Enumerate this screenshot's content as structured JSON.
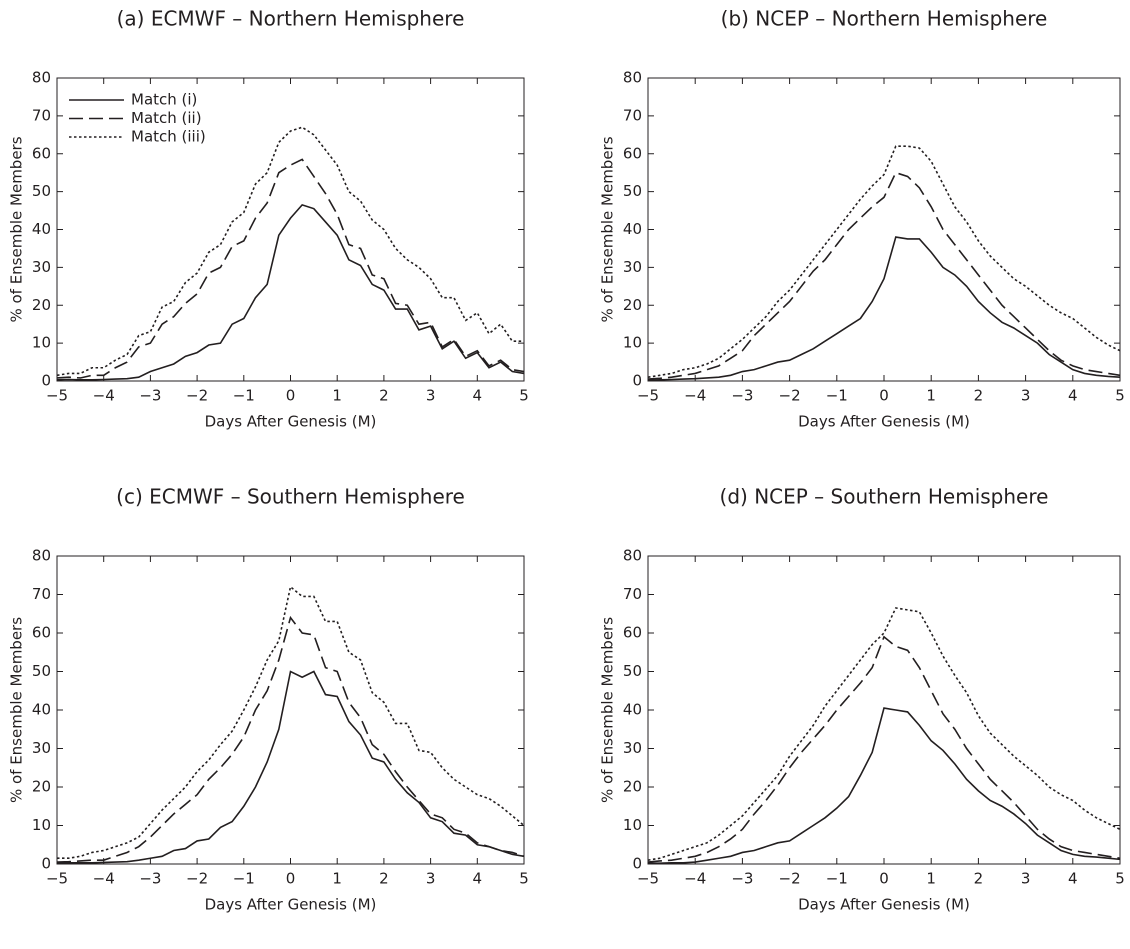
{
  "chart_data": [
    {
      "type": "line",
      "title": "(a) ECMWF – Northern Hemisphere",
      "xlabel": "Days After Genesis (M)",
      "ylabel": "% of Ensemble Members",
      "x": [
        -5,
        -4.75,
        -4.5,
        -4.25,
        -4,
        -3.75,
        -3.5,
        -3.25,
        -3,
        -2.75,
        -2.5,
        -2.25,
        -2,
        -1.75,
        -1.5,
        -1.25,
        -1,
        -0.75,
        -0.5,
        -0.25,
        0,
        0.25,
        0.5,
        0.75,
        1,
        1.25,
        1.5,
        1.75,
        2,
        2.25,
        2.5,
        2.75,
        3,
        3.25,
        3.5,
        3.75,
        4,
        4.25,
        4.5,
        4.75,
        5
      ],
      "xlim": [
        -5,
        5
      ],
      "xticks": [
        {
          "value": -5,
          "label": "−5"
        },
        {
          "value": -4,
          "label": "−4"
        },
        {
          "value": -3,
          "label": "−3"
        },
        {
          "value": -2,
          "label": "−2"
        },
        {
          "value": -1,
          "label": "−1"
        },
        0,
        1,
        2,
        3,
        4,
        5
      ],
      "ylim": [
        0,
        80
      ],
      "yticks": [
        0,
        10,
        20,
        30,
        40,
        50,
        60,
        70,
        80
      ],
      "legend": "upper left",
      "series": [
        {
          "name": "Match (i)",
          "color": "#231f20",
          "style": "solid",
          "values": [
            0.3,
            0.4,
            0.3,
            0.3,
            0.4,
            0.5,
            0.6,
            1,
            2.5,
            3.5,
            4.5,
            6.5,
            7.5,
            9.5,
            10,
            15,
            16.5,
            22,
            25.5,
            38.5,
            43,
            46.5,
            45.5,
            42,
            38.5,
            32,
            30.5,
            25.5,
            24,
            19,
            19,
            13.5,
            14.5,
            8.5,
            10.5,
            6,
            7.5,
            3.5,
            5,
            2.5,
            2
          ]
        },
        {
          "name": "Match (ii)",
          "color": "#231f20",
          "style": "dashed",
          "values": [
            0.8,
            1,
            0.8,
            1.5,
            1.5,
            3.5,
            5,
            9,
            10,
            15,
            17,
            20.5,
            23,
            28.5,
            30,
            35.5,
            37,
            43,
            47,
            55,
            57,
            58.5,
            54,
            49.5,
            44,
            36,
            35,
            28,
            27,
            20.5,
            20,
            15,
            15.5,
            9,
            11,
            6.5,
            8,
            4,
            5.5,
            3,
            2.5
          ]
        },
        {
          "name": "Match (iii)",
          "color": "#231f20",
          "style": "dotted",
          "values": [
            1.5,
            2,
            2,
            3.5,
            3.5,
            5.5,
            7,
            12,
            13,
            19.5,
            21,
            26,
            28.5,
            34,
            36,
            42,
            44.5,
            52,
            55,
            63,
            66,
            67,
            65,
            61,
            57,
            50,
            47.5,
            42.5,
            40,
            35,
            32,
            30,
            27,
            22,
            22,
            16,
            18,
            12.5,
            15,
            10.5,
            10.5
          ]
        }
      ]
    },
    {
      "type": "line",
      "title": "(b) NCEP – Northern Hemisphere",
      "xlabel": "Days After Genesis (M)",
      "ylabel": "% of Ensemble Members",
      "x": [
        -5,
        -4.75,
        -4.5,
        -4.25,
        -4,
        -3.75,
        -3.5,
        -3.25,
        -3,
        -2.75,
        -2.5,
        -2.25,
        -2,
        -1.75,
        -1.5,
        -1.25,
        -1,
        -0.75,
        -0.5,
        -0.25,
        0,
        0.25,
        0.5,
        0.75,
        1,
        1.25,
        1.5,
        1.75,
        2,
        2.25,
        2.5,
        2.75,
        3,
        3.25,
        3.5,
        3.75,
        4,
        4.25,
        4.5,
        4.75,
        5
      ],
      "xlim": [
        -5,
        5
      ],
      "xticks": [
        {
          "value": -5,
          "label": "−5"
        },
        {
          "value": -4,
          "label": "−4"
        },
        {
          "value": -3,
          "label": "−3"
        },
        {
          "value": -2,
          "label": "−2"
        },
        {
          "value": -1,
          "label": "−1"
        },
        0,
        1,
        2,
        3,
        4,
        5
      ],
      "ylim": [
        0,
        80
      ],
      "yticks": [
        0,
        10,
        20,
        30,
        40,
        50,
        60,
        70,
        80
      ],
      "series": [
        {
          "name": "Match (i)",
          "color": "#231f20",
          "style": "solid",
          "values": [
            0.2,
            0.3,
            0.4,
            0.5,
            0.6,
            0.8,
            1,
            1.5,
            2.5,
            3,
            4,
            5,
            5.5,
            7,
            8.5,
            10.5,
            12.5,
            14.5,
            16.5,
            21,
            27,
            38,
            37.5,
            37.5,
            34,
            30,
            28,
            25,
            21,
            18,
            15.5,
            14,
            12,
            10,
            7,
            5,
            3,
            2,
            1.5,
            1.2,
            1
          ]
        },
        {
          "name": "Match (ii)",
          "color": "#231f20",
          "style": "dashed",
          "values": [
            0.5,
            0.7,
            1,
            1.5,
            2,
            3,
            4,
            6,
            8,
            12,
            15,
            18,
            21,
            25,
            29,
            32,
            36,
            40,
            43,
            46,
            48.5,
            55,
            54,
            51,
            46,
            40,
            36,
            32,
            28,
            24,
            20,
            17,
            14,
            11,
            8,
            5.5,
            4,
            3,
            2.5,
            2,
            1.5
          ]
        },
        {
          "name": "Match (iii)",
          "color": "#231f20",
          "style": "dotted",
          "values": [
            1,
            1.5,
            2,
            3,
            3.5,
            4.5,
            6,
            8.5,
            11,
            14,
            17,
            21,
            24,
            28,
            32,
            36,
            40,
            44,
            48,
            51.5,
            54.5,
            62,
            62,
            61.5,
            58,
            52,
            46,
            42,
            37,
            33,
            30,
            27,
            25,
            22.5,
            20,
            18,
            16.5,
            14,
            11.5,
            9.5,
            8
          ]
        }
      ]
    },
    {
      "type": "line",
      "title": "(c) ECMWF – Southern Hemisphere",
      "xlabel": "Days After Genesis (M)",
      "ylabel": "% of Ensemble Members",
      "x": [
        -5,
        -4.75,
        -4.5,
        -4.25,
        -4,
        -3.75,
        -3.5,
        -3.25,
        -3,
        -2.75,
        -2.5,
        -2.25,
        -2,
        -1.75,
        -1.5,
        -1.25,
        -1,
        -0.75,
        -0.5,
        -0.25,
        0,
        0.25,
        0.5,
        0.75,
        1,
        1.25,
        1.5,
        1.75,
        2,
        2.25,
        2.5,
        2.75,
        3,
        3.25,
        3.5,
        3.75,
        4,
        4.25,
        4.5,
        4.75,
        5
      ],
      "xlim": [
        -5,
        5
      ],
      "xticks": [
        {
          "value": -5,
          "label": "−5"
        },
        {
          "value": -4,
          "label": "−4"
        },
        {
          "value": -3,
          "label": "−3"
        },
        {
          "value": -2,
          "label": "−2"
        },
        {
          "value": -1,
          "label": "−1"
        },
        0,
        1,
        2,
        3,
        4,
        5
      ],
      "ylim": [
        0,
        80
      ],
      "yticks": [
        0,
        10,
        20,
        30,
        40,
        50,
        60,
        70,
        80
      ],
      "series": [
        {
          "name": "Match (i)",
          "color": "#231f20",
          "style": "solid",
          "values": [
            0.3,
            0.3,
            0.3,
            0.3,
            0.4,
            0.5,
            0.6,
            1,
            1.5,
            2,
            3.5,
            4,
            6,
            6.5,
            9.5,
            11,
            15,
            20,
            26.5,
            35,
            50,
            48.5,
            50,
            44,
            43.5,
            37,
            33.5,
            27.5,
            26.5,
            22,
            18.5,
            16,
            12,
            11,
            8,
            7.5,
            5,
            4.5,
            3.5,
            2.5,
            2
          ]
        },
        {
          "name": "Match (ii)",
          "color": "#231f20",
          "style": "dashed",
          "values": [
            0.5,
            0.6,
            0.8,
            1,
            1,
            2,
            3,
            4.5,
            7,
            10,
            13,
            15.5,
            18,
            22,
            25,
            28.5,
            33,
            40,
            45,
            53,
            64,
            60,
            59.5,
            51,
            50,
            42,
            38,
            31,
            28.5,
            24,
            20,
            16.5,
            13,
            12,
            9,
            8,
            5.5,
            4.5,
            3.5,
            3,
            2
          ]
        },
        {
          "name": "Match (iii)",
          "color": "#231f20",
          "style": "dotted",
          "values": [
            1.5,
            1.5,
            2,
            3,
            3.5,
            4.5,
            5.5,
            7,
            10.5,
            14,
            17,
            20,
            24,
            27,
            31,
            34.5,
            40,
            46,
            53,
            58,
            72,
            69.5,
            69.5,
            63,
            63,
            55,
            53,
            44.5,
            42,
            36.5,
            36.5,
            29.5,
            29,
            25,
            22,
            20,
            18,
            17,
            15,
            12.5,
            10
          ]
        }
      ]
    },
    {
      "type": "line",
      "title": "(d) NCEP – Southern Hemisphere",
      "xlabel": "Days After Genesis (M)",
      "ylabel": "% of Ensemble Members",
      "x": [
        -5,
        -4.75,
        -4.5,
        -4.25,
        -4,
        -3.75,
        -3.5,
        -3.25,
        -3,
        -2.75,
        -2.5,
        -2.25,
        -2,
        -1.75,
        -1.5,
        -1.25,
        -1,
        -0.75,
        -0.5,
        -0.25,
        0,
        0.25,
        0.5,
        0.75,
        1,
        1.25,
        1.5,
        1.75,
        2,
        2.25,
        2.5,
        2.75,
        3,
        3.25,
        3.5,
        3.75,
        4,
        4.25,
        4.5,
        4.75,
        5
      ],
      "xlim": [
        -5,
        5
      ],
      "xticks": [
        {
          "value": -5,
          "label": "−5"
        },
        {
          "value": -4,
          "label": "−4"
        },
        {
          "value": -3,
          "label": "−3"
        },
        {
          "value": -2,
          "label": "−2"
        },
        {
          "value": -1,
          "label": "−1"
        },
        0,
        1,
        2,
        3,
        4,
        5
      ],
      "ylim": [
        0,
        80
      ],
      "yticks": [
        0,
        10,
        20,
        30,
        40,
        50,
        60,
        70,
        80
      ],
      "series": [
        {
          "name": "Match (i)",
          "color": "#231f20",
          "style": "solid",
          "values": [
            0.2,
            0.2,
            0.3,
            0.3,
            0.5,
            1,
            1.5,
            2,
            3,
            3.5,
            4.5,
            5.5,
            6,
            8,
            10,
            12,
            14.5,
            17.5,
            23,
            29,
            40.5,
            40,
            39.5,
            36,
            32,
            29.5,
            26,
            22,
            19,
            16.5,
            15,
            13,
            10.5,
            7.5,
            5.5,
            3.5,
            2.5,
            2,
            1.8,
            1.5,
            1.2
          ]
        },
        {
          "name": "Match (ii)",
          "color": "#231f20",
          "style": "dashed",
          "values": [
            0.5,
            0.8,
            1,
            1.5,
            2,
            3,
            4.5,
            6.5,
            9,
            13,
            16.5,
            20.5,
            25,
            29,
            32.5,
            36,
            40,
            43.5,
            47,
            51,
            59,
            56.5,
            55.5,
            51,
            45,
            39,
            35,
            30,
            26,
            22,
            19,
            16,
            12.5,
            9,
            6.5,
            4.5,
            3.5,
            3,
            2.5,
            2,
            1.5
          ]
        },
        {
          "name": "Match (iii)",
          "color": "#231f20",
          "style": "dotted",
          "values": [
            1,
            1.5,
            2.5,
            3.5,
            4.5,
            5.5,
            7.5,
            10,
            12.5,
            16,
            19.5,
            23,
            28,
            32,
            36,
            41,
            45,
            49,
            53,
            57,
            60,
            66.5,
            66,
            65.5,
            60,
            54,
            49,
            44.5,
            38.5,
            34,
            31,
            28,
            25.5,
            23,
            20,
            18,
            16.5,
            14,
            12,
            10.5,
            9
          ]
        }
      ]
    }
  ]
}
